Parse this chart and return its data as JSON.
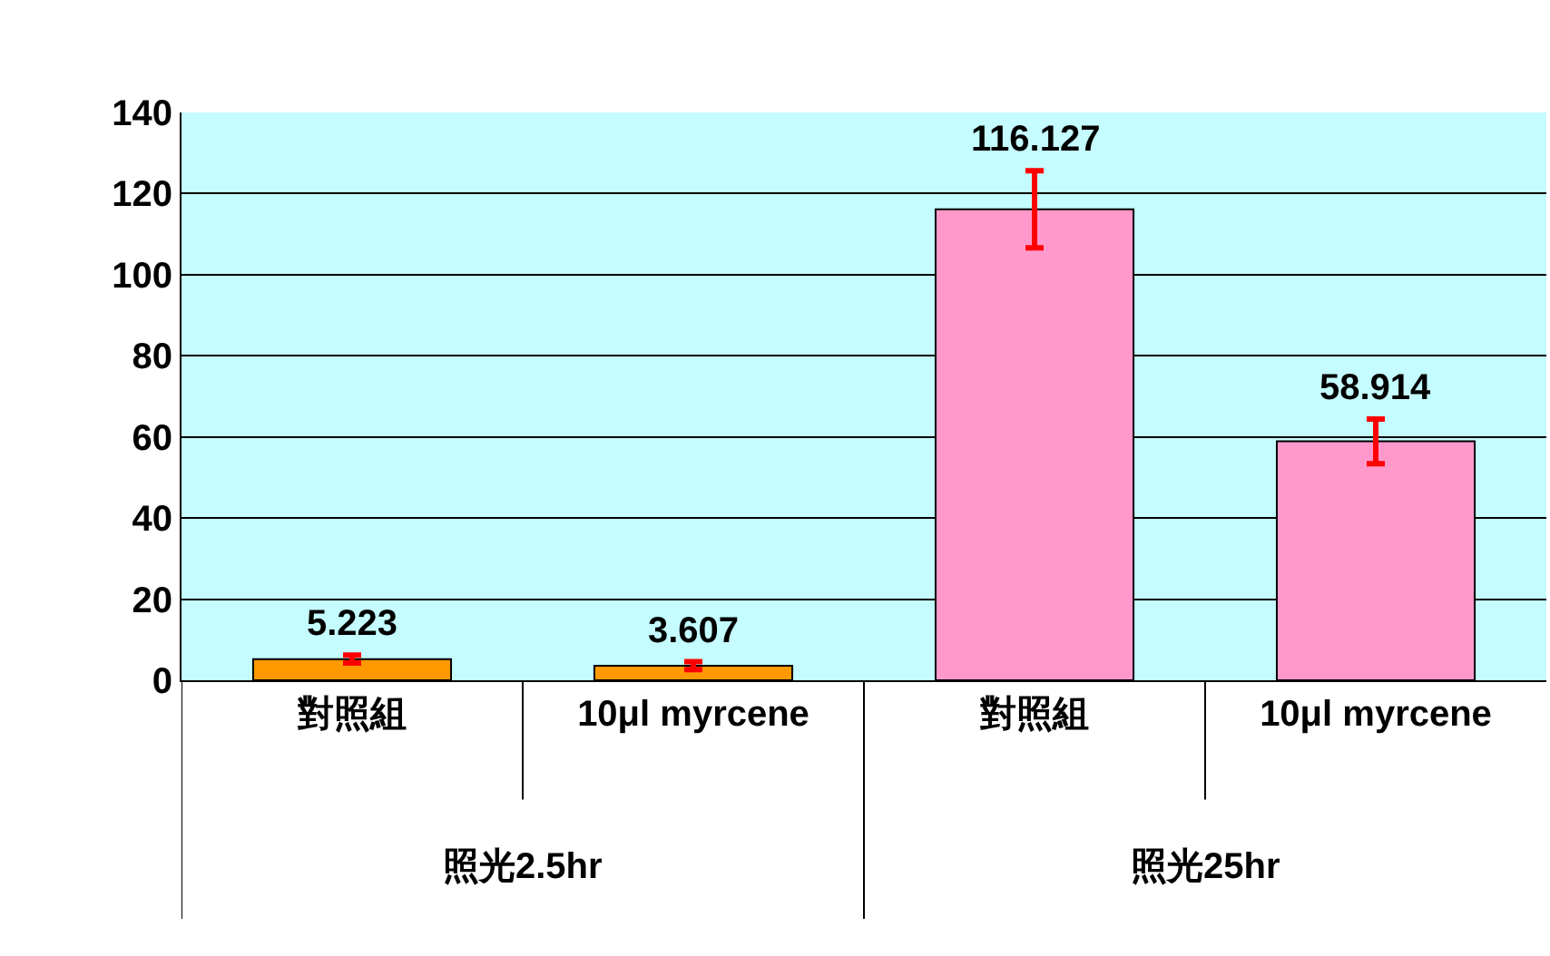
{
  "chart_data": {
    "type": "bar",
    "categories": [
      "對照組",
      "10μl myrcene",
      "對照組",
      "10μl myrcene"
    ],
    "values": [
      5.223,
      3.607,
      116.127,
      58.914
    ],
    "errors": [
      1,
      1,
      9.5,
      5.5
    ],
    "colors": [
      "#ff9900",
      "#ff9900",
      "#ff99cc",
      "#ff99cc"
    ],
    "data_labels": true,
    "annotations": [
      "照光2.5hr",
      "照光25hr"
    ],
    "ylim": [
      0,
      140
    ],
    "yticks": [
      0,
      20,
      40,
      60,
      80,
      100,
      120,
      140
    ],
    "grid": "y"
  }
}
